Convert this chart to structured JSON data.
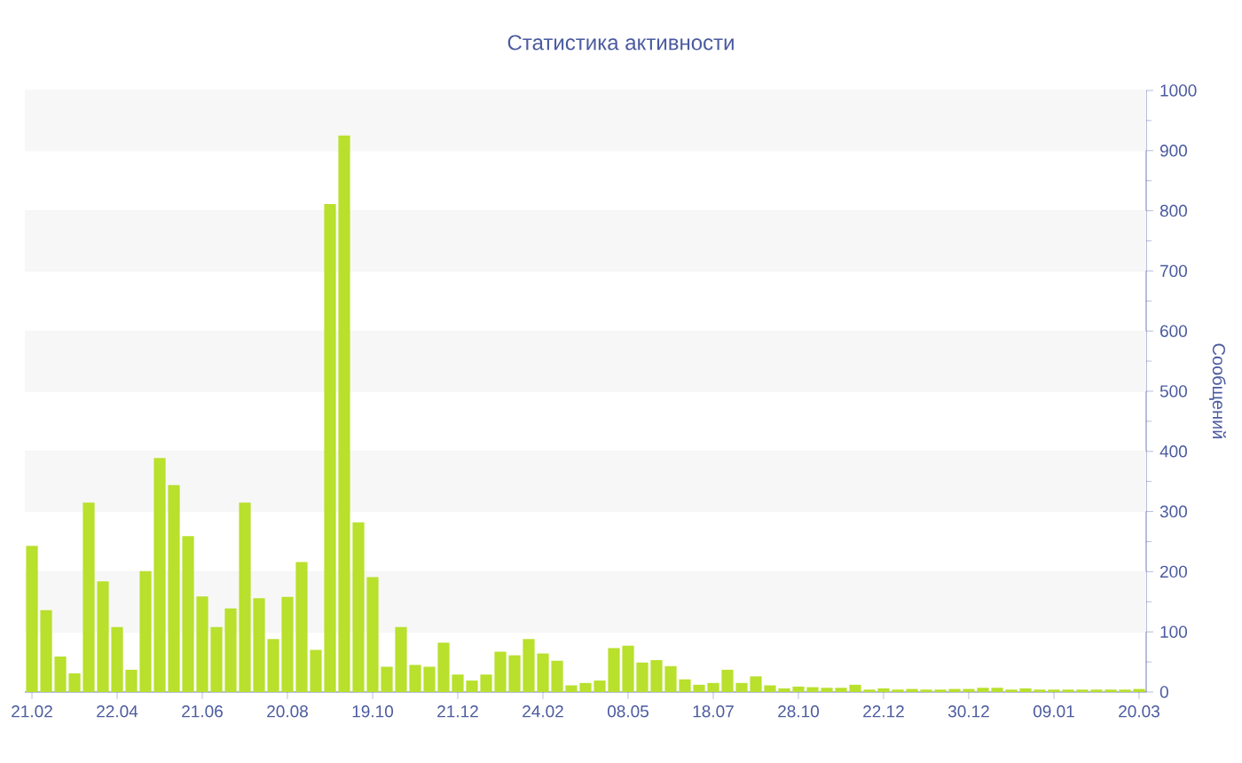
{
  "chart_data": {
    "type": "bar",
    "title": "Статистика активности",
    "ylabel": "Сообщений",
    "categories": [
      "21.02",
      null,
      null,
      null,
      null,
      null,
      "22.04",
      null,
      null,
      null,
      null,
      null,
      "21.06",
      null,
      null,
      null,
      null,
      null,
      "20.08",
      null,
      null,
      null,
      null,
      null,
      "19.10",
      null,
      null,
      null,
      null,
      null,
      "21.12",
      null,
      null,
      null,
      null,
      null,
      "24.02",
      null,
      null,
      null,
      null,
      null,
      "08.05",
      null,
      null,
      null,
      null,
      null,
      "18.07",
      null,
      null,
      null,
      null,
      null,
      "28.10",
      null,
      null,
      null,
      null,
      null,
      "22.12",
      null,
      null,
      null,
      null,
      null,
      "30.12",
      null,
      null,
      null,
      null,
      null,
      "09.01",
      null,
      null,
      null,
      null,
      null,
      "20.03"
    ],
    "values": [
      243,
      136,
      59,
      31,
      315,
      184,
      108,
      37,
      201,
      389,
      344,
      259,
      159,
      108,
      139,
      315,
      156,
      88,
      158,
      216,
      70,
      811,
      925,
      282,
      191,
      42,
      108,
      45,
      42,
      82,
      29,
      19,
      29,
      67,
      61,
      88,
      64,
      52,
      11,
      15,
      19,
      73,
      77,
      49,
      53,
      43,
      21,
      12,
      15,
      37,
      15,
      26,
      11,
      6,
      9,
      8,
      7,
      7,
      12,
      4,
      6,
      4,
      5,
      4,
      4,
      5,
      5,
      7,
      7,
      4,
      6,
      4,
      4,
      4,
      4,
      4,
      4,
      4,
      5
    ],
    "color": "#b8e02c",
    "ylim": [
      0,
      1000
    ],
    "yticks": [
      0,
      100,
      200,
      300,
      400,
      500,
      600,
      700,
      800,
      900,
      1000
    ],
    "grid": "y"
  }
}
